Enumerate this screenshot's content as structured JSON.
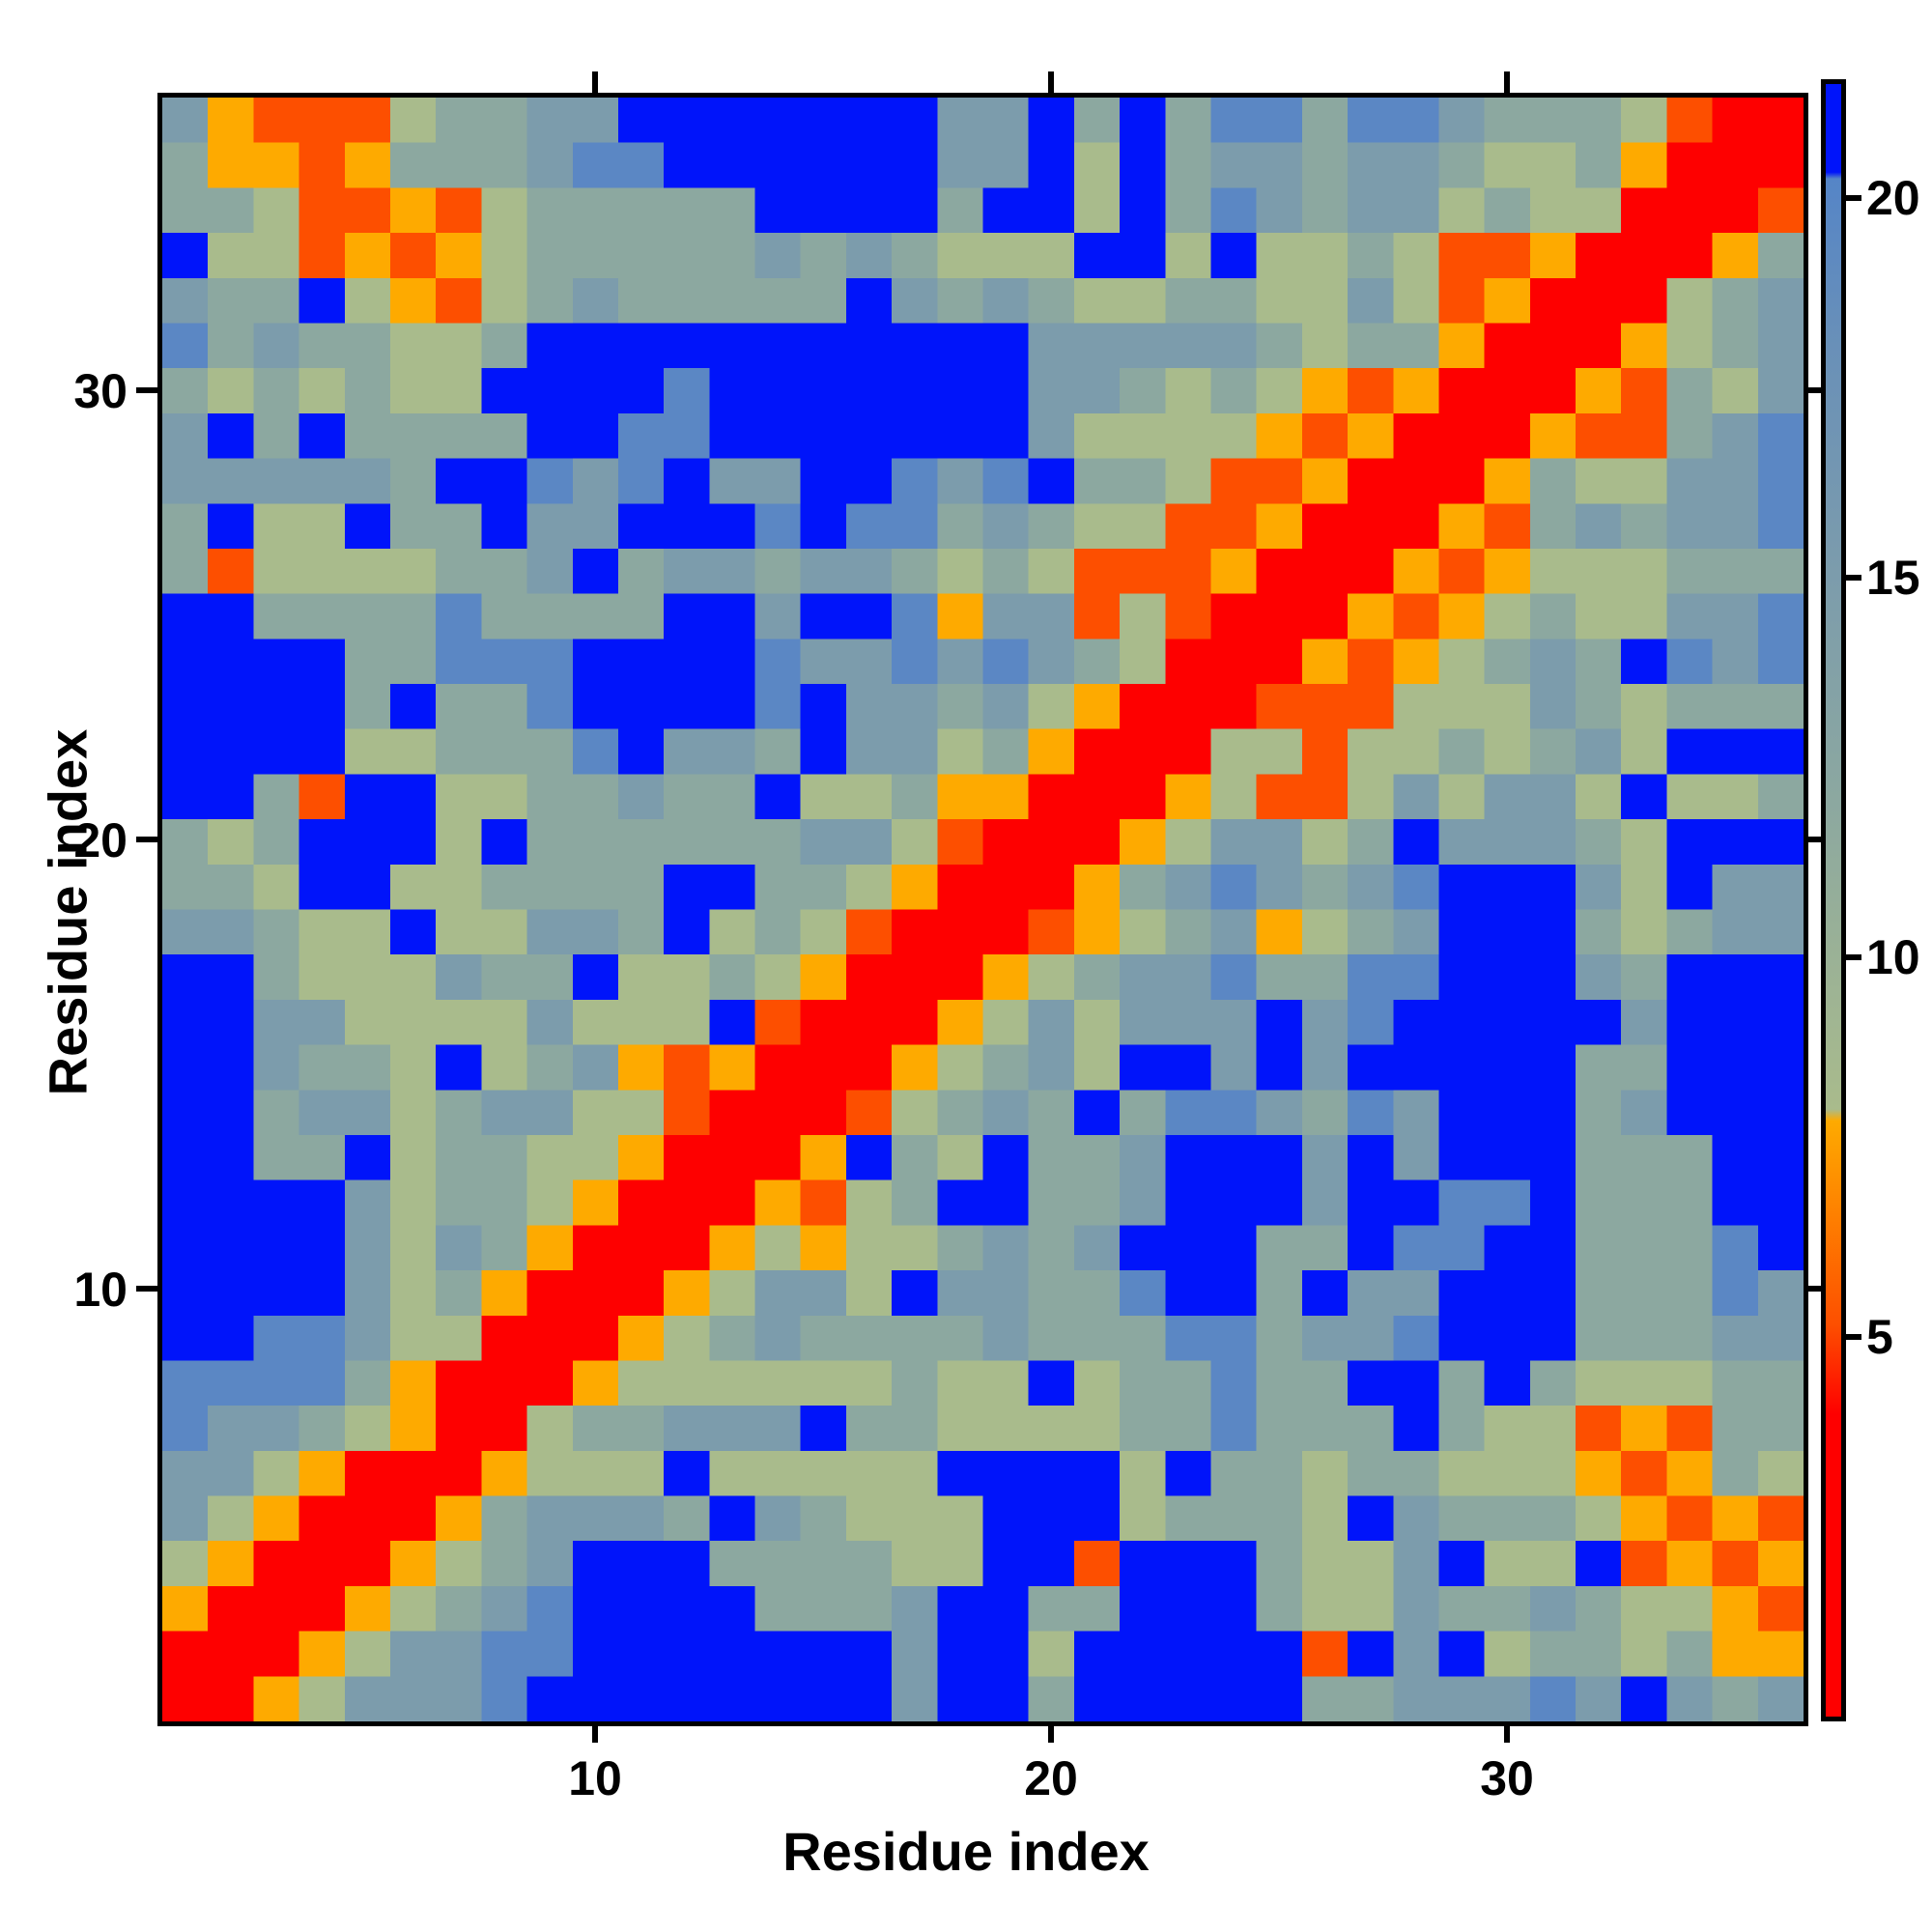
{
  "figure": {
    "kind": "residue distance matrix heatmap",
    "background": "#ffffff",
    "frame_color": "#000000"
  },
  "axes": {
    "x": {
      "label": "Residue index",
      "ticks": [
        {
          "value": 10,
          "label": "10"
        },
        {
          "value": 20,
          "label": "20"
        },
        {
          "value": 30,
          "label": "30"
        }
      ],
      "range": [
        1,
        36
      ]
    },
    "y": {
      "label": "Residue index",
      "ticks": [
        {
          "value": 10,
          "label": "10"
        },
        {
          "value": 20,
          "label": "20"
        },
        {
          "value": 30,
          "label": "30"
        }
      ],
      "range": [
        1,
        36
      ]
    }
  },
  "colorbar": {
    "tick_labels": [
      {
        "value": 20,
        "label": "20"
      },
      {
        "value": 15,
        "label": "15"
      },
      {
        "value": 10,
        "label": "10"
      },
      {
        "value": 5,
        "label": "5"
      }
    ],
    "value_range": [
      0,
      21.5
    ],
    "stops": [
      {
        "at": 0.0,
        "color": "#fe0000"
      },
      {
        "at": 0.185,
        "color": "#fe0000"
      },
      {
        "at": 0.24,
        "color": "#fd4f00"
      },
      {
        "at": 0.365,
        "color": "#feaa00"
      },
      {
        "at": 0.372,
        "color": "#a9bb8c"
      },
      {
        "at": 0.56,
        "color": "#8ca8a0"
      },
      {
        "at": 0.7,
        "color": "#7c9cac"
      },
      {
        "at": 0.84,
        "color": "#6990b8"
      },
      {
        "at": 0.942,
        "color": "#5585c7"
      },
      {
        "at": 0.946,
        "color": "#0014fa"
      },
      {
        "at": 1.0,
        "color": "#0014fa"
      }
    ]
  },
  "chart_data": {
    "type": "heatmap",
    "title": "",
    "xlabel": "Residue index",
    "ylabel": "Residue index",
    "n_rows": 36,
    "n_cols": 36,
    "x_ticks": [
      10,
      20,
      30
    ],
    "y_ticks": [
      10,
      20,
      30
    ],
    "legend_position": "right-colorbar",
    "grid": false,
    "palette": {
      "R": {
        "color": "#fe0000",
        "value": 3.0,
        "meaning": "very short distance / diagonal"
      },
      "D": {
        "color": "#fd4f00",
        "value": 5.5,
        "meaning": "short distance"
      },
      "O": {
        "color": "#feaa00",
        "value": 7.0,
        "meaning": "near contact"
      },
      "s": {
        "color": "#a9bb8c",
        "value": 9.5,
        "meaning": "sage green mid-low"
      },
      "g": {
        "color": "#8ca8a0",
        "value": 12.0,
        "meaning": "grey-green mid"
      },
      "t": {
        "color": "#7c9cac",
        "value": 15.0,
        "meaning": "grey-blue"
      },
      "b": {
        "color": "#5b87c4",
        "value": 18.0,
        "meaning": "steel blue"
      },
      "U": {
        "color": "#0014fa",
        "value": 21.0,
        "meaning": "capped max (> 20.4)"
      }
    },
    "rows_bottom_to_top_note": "index 0 = residue row 1 (bottom of plot); each string = columns 1..36 left to right",
    "rows": [
      "RROstttbUUUUUUUUtUUgUUUUUggtttbtUtgt",
      "RRROsttbbUUUUUUUtUUsUUUUUDUtUsggsgOO",
      "ORRROsgtbUUUUgggtUUggUUUgsstggtgssOD",
      "sORRROsgtUUUggggssUUDUUUgsstUssUDODO",
      "tsORRROgtttgUtgsssUUUsgggsUtgggsODOD",
      "ttsORRROsssUsssssUUUUsUggsggsssODOgs",
      "bttgsORRsggtttUggssssggbgggUgssDODgg",
      "bbbbgORRROssssssgssUsggbggUUgUgsssgg",
      "UUbbtssRRROsgtggggtgggbbgttbUUUgggtt",
      "UUUUtsgORRROstts UttggbUUgUttUUUgggbt",
      "UUUUtstgORRROsOssgtgtUUUggUbbUUgggbU",
      "UUUUtsggsORRRODsgUUggtUUUtUUbbUgggUU",
      "UUggUsggssORRROUgsUggtUUUtUtUUUgggUU",
      "UUgttsgttssDRRRDsgtgUgbbtgbtUUUgtUUU",
      "UUtggsUsgtODORRROsgtsUUtUtUUUUUggUUU",
      "UUttsssstsssUDRRROstst ttUtbUUUUUtUUU",
      "UUgssstggUssgsORRROsgttbggbbUUUtgUUU",
      "ttgssUssttgUsgsDRRRDOsgtOsgtUUUgsgtt",
      "ggsUUssggggUUggsORRROgtbtgtbUUUtsUtt",
      "gsgUUUsUggggggttsDRRROsttsgUtttgsUUU",
      "UUgDUUssggtggUssgOORRROsDDststtsUssg",
      "UUUUssgggbUttgUttsgORRRssDssgsgtsUUUU",
      "UUUUgUggbUUUUbUttgtsORRRDDDssstgsggg",
      "UUUUggbbbUUUUbttbtbtgsRRRODOsgtgUbtb",
      "UUggggbggggUUtUUbOttDsDRRRODOsgsstt b",
      "gDssssggtUgttgttgsgsDDDORRRODOsssggg",
      "gUssUggUttUUUbUbbgtgssDDORRRODgtgttb",
      "tttttgUUbtbUttUUbtbUggsDDORRROgsst tb",
      "tUgUggggUUbbUUUUUUUtssssODORRRODDgtb",
      "gsgsgssUUUUbUUUUUUUttgsgsODORRRODgst",
      "bgtggssgUUUUUUUUUUUtttttgsggORRROsgt",
      "tggUsODsgtgggggUtgtgssggsstsDORRRsgt",
      "UssDODOsggggg tgtgsssUUsUssgsDDORRROg",
      "ggsDDODsgggggUUUUgUUsUgbtgtt sgssRRRD",
      "gOODOgggtbbUUUUUUttUsUgttgttgssgORRR",
      "tODDDsggttUUUUUUUttUgUgbbgbbtgggsDRR"
    ]
  }
}
